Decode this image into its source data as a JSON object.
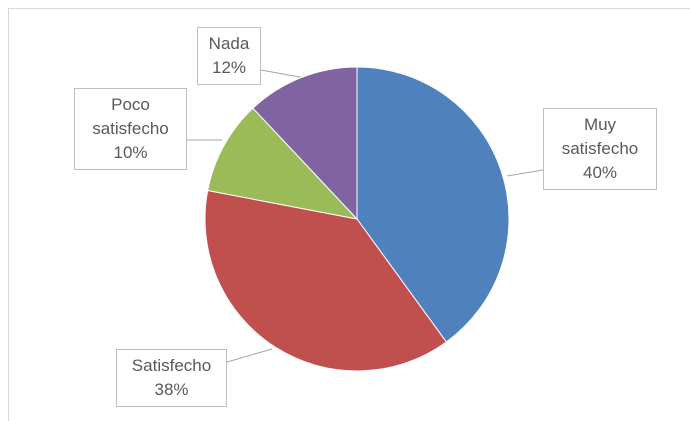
{
  "chart_data": {
    "type": "pie",
    "categories": [
      "Muy satisfecho",
      "Satisfecho",
      "Poco satisfecho",
      "Nada"
    ],
    "values": [
      40,
      38,
      10,
      12
    ],
    "value_labels": [
      "40%",
      "38%",
      "10%",
      "12%"
    ],
    "colors": [
      "#4f81bd",
      "#c0504d",
      "#9bbb59",
      "#8064a2"
    ]
  }
}
